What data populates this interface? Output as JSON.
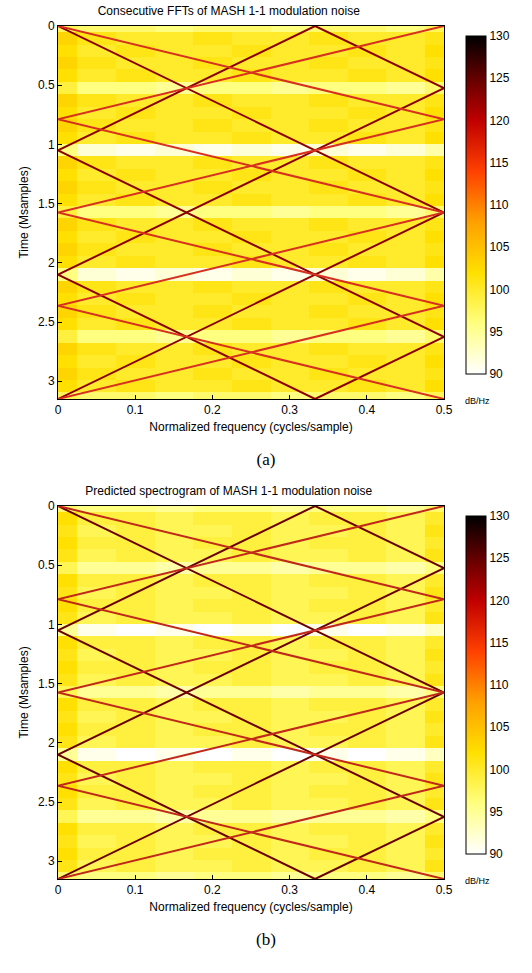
{
  "chart_data": [
    {
      "type": "heatmap",
      "title": "Consecutive FFTs of MASH 1-1 modulation noise",
      "caption": "(a)",
      "x_label": "Normalized frequency (cycles/sample)",
      "y_label": "Time (Msamples)",
      "xlim": [
        0,
        0.5
      ],
      "xticks": [
        0,
        0.1,
        0.2,
        0.3,
        0.4,
        0.5
      ],
      "ylim": [
        3.15,
        0
      ],
      "yticks": [
        0,
        0.5,
        1,
        1.5,
        2,
        2.5,
        3
      ],
      "cells": {
        "x": [
          0,
          0.05,
          0.1,
          0.15,
          0.2,
          0.25,
          0.3,
          0.35,
          0.4,
          0.45,
          0.5
        ],
        "y": [
          0,
          0.105,
          0.21,
          0.315,
          0.42,
          0.525,
          0.63,
          0.735,
          0.84,
          0.945,
          1.05,
          1.155,
          1.26,
          1.365,
          1.47,
          1.575,
          1.68,
          1.785,
          1.89,
          1.995,
          2.1,
          2.205,
          2.31,
          2.415,
          2.52,
          2.625,
          2.73,
          2.835,
          2.94,
          3.045,
          3.15
        ],
        "z": [
          [
            98,
            97,
            97,
            96,
            97,
            97,
            96,
            97,
            97,
            96,
            98
          ],
          [
            103,
            101,
            100,
            100,
            101,
            100,
            100,
            101,
            100,
            100,
            101
          ],
          [
            102,
            100,
            101,
            100,
            100,
            101,
            100,
            100,
            101,
            100,
            102
          ],
          [
            103,
            101,
            100,
            100,
            101,
            100,
            100,
            101,
            100,
            100,
            101
          ],
          [
            102,
            100,
            101,
            100,
            100,
            101,
            100,
            100,
            101,
            100,
            102
          ],
          [
            99,
            96,
            96,
            95,
            96,
            96,
            95,
            96,
            96,
            95,
            97
          ],
          [
            103,
            101,
            100,
            100,
            101,
            100,
            100,
            101,
            100,
            100,
            101
          ],
          [
            102,
            100,
            101,
            100,
            100,
            101,
            100,
            100,
            101,
            100,
            102
          ],
          [
            103,
            101,
            100,
            100,
            101,
            100,
            100,
            101,
            100,
            100,
            101
          ],
          [
            102,
            100,
            101,
            100,
            100,
            101,
            100,
            100,
            101,
            100,
            102
          ],
          [
            96,
            92,
            91,
            92,
            91,
            92,
            91,
            92,
            91,
            92,
            94
          ],
          [
            103,
            101,
            100,
            100,
            101,
            100,
            100,
            101,
            100,
            100,
            101
          ],
          [
            102,
            100,
            101,
            100,
            100,
            101,
            100,
            100,
            101,
            100,
            102
          ],
          [
            103,
            101,
            100,
            100,
            101,
            100,
            100,
            101,
            100,
            100,
            101
          ],
          [
            102,
            100,
            101,
            100,
            100,
            101,
            100,
            100,
            101,
            100,
            102
          ],
          [
            99,
            96,
            96,
            95,
            96,
            96,
            95,
            96,
            96,
            95,
            97
          ],
          [
            103,
            101,
            100,
            100,
            101,
            100,
            100,
            101,
            100,
            100,
            101
          ],
          [
            102,
            100,
            101,
            100,
            100,
            101,
            100,
            100,
            101,
            100,
            102
          ],
          [
            103,
            101,
            100,
            100,
            101,
            100,
            100,
            101,
            100,
            100,
            101
          ],
          [
            102,
            100,
            101,
            100,
            100,
            101,
            100,
            100,
            101,
            100,
            102
          ],
          [
            96,
            92,
            91,
            92,
            91,
            92,
            91,
            92,
            91,
            92,
            94
          ],
          [
            103,
            101,
            100,
            100,
            101,
            100,
            100,
            101,
            100,
            100,
            101
          ],
          [
            102,
            100,
            101,
            100,
            100,
            101,
            100,
            100,
            101,
            100,
            102
          ],
          [
            103,
            101,
            100,
            100,
            101,
            100,
            100,
            101,
            100,
            100,
            101
          ],
          [
            102,
            100,
            101,
            100,
            100,
            101,
            100,
            100,
            101,
            100,
            102
          ],
          [
            99,
            96,
            96,
            95,
            96,
            96,
            95,
            96,
            96,
            95,
            97
          ],
          [
            103,
            101,
            100,
            100,
            101,
            100,
            100,
            101,
            100,
            100,
            101
          ],
          [
            102,
            100,
            101,
            100,
            100,
            101,
            100,
            100,
            101,
            100,
            102
          ],
          [
            103,
            101,
            100,
            100,
            101,
            100,
            100,
            101,
            100,
            100,
            101
          ],
          [
            102,
            100,
            101,
            100,
            100,
            101,
            100,
            100,
            101,
            100,
            102
          ],
          [
            98,
            97,
            97,
            96,
            97,
            97,
            96,
            97,
            97,
            96,
            98
          ]
        ]
      },
      "colorbar": {
        "range": [
          90,
          130
        ],
        "ticks": [
          90,
          95,
          100,
          105,
          110,
          115,
          120,
          125,
          130
        ],
        "title": "dB/Hz"
      },
      "series": [
        {
          "type": "line",
          "color": "#8b0000",
          "x": [
            0,
            0.333,
            0,
            0.333
          ],
          "y": [
            0,
            1.05,
            2.1,
            3.15
          ]
        },
        {
          "type": "line",
          "color": "#8b0000",
          "x": [
            0.333,
            0,
            0.333,
            0
          ],
          "y": [
            0,
            1.05,
            2.1,
            3.15
          ]
        },
        {
          "type": "line",
          "color": "#8b0000",
          "x": [
            0.333,
            0.5,
            0.333,
            0.5,
            0.333,
            0.5,
            0.333
          ],
          "y": [
            0,
            0.525,
            1.05,
            1.575,
            2.1,
            2.625,
            3.15
          ]
        },
        {
          "type": "line",
          "color": "#d7301f",
          "x": [
            0,
            0.5,
            0,
            0.5,
            0
          ],
          "y": [
            0,
            0.7875,
            1.575,
            2.3625,
            3.15
          ]
        },
        {
          "type": "line",
          "color": "#d7301f",
          "x": [
            0.5,
            0,
            0.5,
            0,
            0.5
          ],
          "y": [
            0,
            0.7875,
            1.575,
            2.3625,
            3.15
          ]
        }
      ]
    },
    {
      "type": "heatmap",
      "title": "Predicted spectrogram of MASH 1-1 modulation noise",
      "caption": "(b)",
      "x_label": "Normalized frequency (cycles/sample)",
      "y_label": "Time (Msamples)",
      "xlim": [
        0,
        0.5
      ],
      "xticks": [
        0,
        0.1,
        0.2,
        0.3,
        0.4,
        0.5
      ],
      "ylim": [
        3.15,
        0
      ],
      "yticks": [
        0,
        0.5,
        1,
        1.5,
        2,
        2.5,
        3
      ],
      "cells": {
        "x": [
          0,
          0.05,
          0.1,
          0.15,
          0.2,
          0.25,
          0.3,
          0.35,
          0.4,
          0.45,
          0.5
        ],
        "y": [
          0,
          0.105,
          0.21,
          0.315,
          0.42,
          0.525,
          0.63,
          0.735,
          0.84,
          0.945,
          1.05,
          1.155,
          1.26,
          1.365,
          1.47,
          1.575,
          1.68,
          1.785,
          1.89,
          1.995,
          2.1,
          2.205,
          2.31,
          2.415,
          2.52,
          2.625,
          2.73,
          2.835,
          2.94,
          3.045,
          3.15
        ],
        "z": [
          [
            97,
            96,
            96,
            95,
            96,
            96,
            95,
            96,
            96,
            95,
            97
          ],
          [
            102,
            99,
            99,
            98,
            99,
            99,
            98,
            99,
            99,
            98,
            100
          ],
          [
            101,
            98,
            99,
            98,
            98,
            99,
            98,
            98,
            99,
            98,
            101
          ],
          [
            102,
            99,
            99,
            98,
            99,
            99,
            98,
            99,
            99,
            98,
            100
          ],
          [
            101,
            98,
            99,
            98,
            98,
            99,
            98,
            98,
            99,
            98,
            101
          ],
          [
            98,
            95,
            95,
            94,
            95,
            95,
            94,
            95,
            95,
            94,
            96
          ],
          [
            102,
            99,
            99,
            98,
            99,
            99,
            98,
            99,
            99,
            98,
            100
          ],
          [
            101,
            98,
            99,
            98,
            98,
            99,
            98,
            98,
            99,
            98,
            101
          ],
          [
            102,
            99,
            99,
            98,
            99,
            99,
            98,
            99,
            99,
            98,
            100
          ],
          [
            101,
            98,
            99,
            98,
            98,
            99,
            98,
            98,
            99,
            98,
            101
          ],
          [
            95,
            91,
            90,
            91,
            90,
            91,
            90,
            91,
            90,
            91,
            93
          ],
          [
            102,
            99,
            99,
            98,
            99,
            99,
            98,
            99,
            99,
            98,
            100
          ],
          [
            101,
            98,
            99,
            98,
            98,
            99,
            98,
            98,
            99,
            98,
            101
          ],
          [
            102,
            99,
            99,
            98,
            99,
            99,
            98,
            99,
            99,
            98,
            100
          ],
          [
            101,
            98,
            99,
            98,
            98,
            99,
            98,
            98,
            99,
            98,
            101
          ],
          [
            98,
            95,
            95,
            94,
            95,
            95,
            94,
            95,
            95,
            94,
            96
          ],
          [
            102,
            99,
            99,
            98,
            99,
            99,
            98,
            99,
            99,
            98,
            100
          ],
          [
            101,
            98,
            99,
            98,
            98,
            99,
            98,
            98,
            99,
            98,
            101
          ],
          [
            102,
            99,
            99,
            98,
            99,
            99,
            98,
            99,
            99,
            98,
            100
          ],
          [
            101,
            98,
            99,
            98,
            98,
            99,
            98,
            98,
            99,
            98,
            101
          ],
          [
            95,
            91,
            90,
            91,
            90,
            91,
            90,
            91,
            90,
            91,
            93
          ],
          [
            102,
            99,
            99,
            98,
            99,
            99,
            98,
            99,
            99,
            98,
            100
          ],
          [
            101,
            98,
            99,
            98,
            98,
            99,
            98,
            98,
            99,
            98,
            101
          ],
          [
            102,
            99,
            99,
            98,
            99,
            99,
            98,
            99,
            99,
            98,
            100
          ],
          [
            101,
            98,
            99,
            98,
            98,
            99,
            98,
            98,
            99,
            98,
            101
          ],
          [
            98,
            95,
            95,
            94,
            95,
            95,
            94,
            95,
            95,
            94,
            96
          ],
          [
            102,
            99,
            99,
            98,
            99,
            99,
            98,
            99,
            99,
            98,
            100
          ],
          [
            101,
            98,
            99,
            98,
            98,
            99,
            98,
            98,
            99,
            98,
            101
          ],
          [
            102,
            99,
            99,
            98,
            99,
            99,
            98,
            99,
            99,
            98,
            100
          ],
          [
            101,
            98,
            99,
            98,
            98,
            99,
            98,
            98,
            99,
            98,
            101
          ],
          [
            97,
            96,
            96,
            95,
            96,
            96,
            95,
            96,
            96,
            95,
            97
          ]
        ]
      },
      "colorbar": {
        "range": [
          90,
          130
        ],
        "ticks": [
          90,
          95,
          100,
          105,
          110,
          115,
          120,
          125,
          130
        ],
        "title": "dB/Hz"
      },
      "series": [
        {
          "type": "line",
          "color": "#6b0000",
          "x": [
            0,
            0.333,
            0,
            0.333
          ],
          "y": [
            0,
            1.05,
            2.1,
            3.15
          ]
        },
        {
          "type": "line",
          "color": "#6b0000",
          "x": [
            0.333,
            0,
            0.333,
            0
          ],
          "y": [
            0,
            1.05,
            2.1,
            3.15
          ]
        },
        {
          "type": "line",
          "color": "#6b0000",
          "x": [
            0.333,
            0.5,
            0.333,
            0.5,
            0.333,
            0.5,
            0.333
          ],
          "y": [
            0,
            0.525,
            1.05,
            1.575,
            2.1,
            2.625,
            3.15
          ]
        },
        {
          "type": "line",
          "color": "#c0281a",
          "x": [
            0,
            0.5,
            0,
            0.5,
            0
          ],
          "y": [
            0,
            0.7875,
            1.575,
            2.3625,
            3.15
          ]
        },
        {
          "type": "line",
          "color": "#c0281a",
          "x": [
            0.5,
            0,
            0.5,
            0,
            0.5
          ],
          "y": [
            0,
            0.7875,
            1.575,
            2.3625,
            3.15
          ]
        }
      ]
    }
  ]
}
